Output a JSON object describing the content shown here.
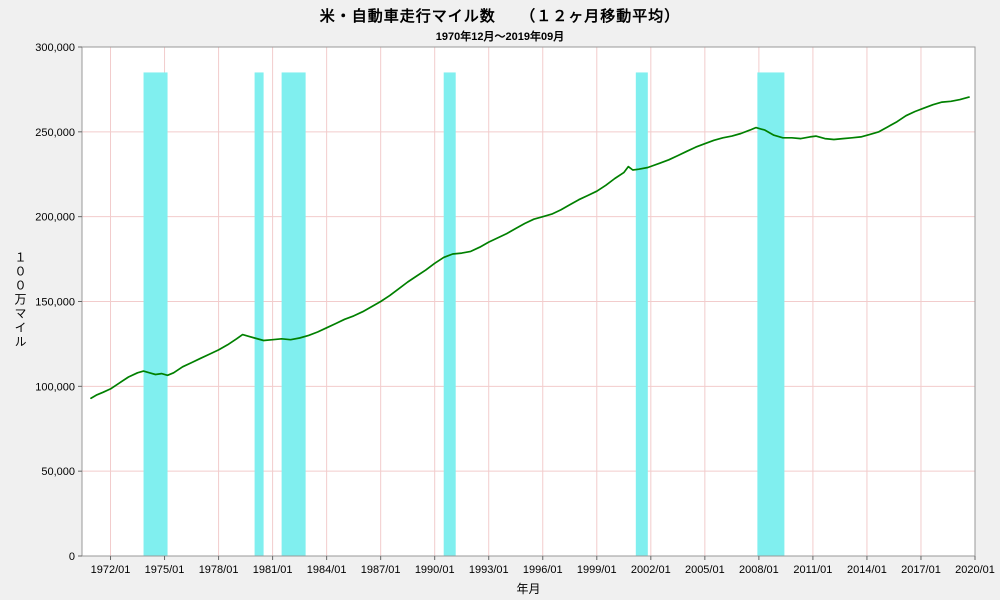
{
  "chart_data": {
    "type": "line",
    "title": "米・自動車走行マイル数　　（１２ヶ月移動平均）",
    "subtitle": "1970年12月～2019年09月",
    "xlabel": "年月",
    "ylabel": "１００万マイル",
    "ylim": [
      0,
      300000
    ],
    "yticks": [
      0,
      50000,
      100000,
      150000,
      200000,
      250000,
      300000
    ],
    "xticks": [
      "1972/01",
      "1975/01",
      "1978/01",
      "1981/01",
      "1984/01",
      "1987/01",
      "1990/01",
      "1993/01",
      "1996/01",
      "1999/01",
      "2002/01",
      "2005/01",
      "2008/01",
      "2011/01",
      "2014/01",
      "2017/01",
      "2020/01"
    ],
    "x_range": [
      "1970/06",
      "2020/01"
    ],
    "grid": true,
    "grid_color": "#f2cccc",
    "plot_bg": "#ffffff",
    "border_color": "#999999",
    "line_color": "#008000",
    "band_color": "#80efef",
    "band_top": 285000,
    "recession_bands": [
      [
        "1973/11",
        "1975/03"
      ],
      [
        "1980/01",
        "1980/07"
      ],
      [
        "1981/07",
        "1982/11"
      ],
      [
        "1990/07",
        "1991/03"
      ],
      [
        "2001/03",
        "2001/11"
      ],
      [
        "2007/12",
        "2009/06"
      ]
    ],
    "series": [
      {
        "name": "米・自動車走行マイル数（12ヶ月移動平均）",
        "points": [
          [
            "1970/12",
            93000
          ],
          [
            "1971/04",
            95000
          ],
          [
            "1971/08",
            96500
          ],
          [
            "1972/01",
            98500
          ],
          [
            "1972/07",
            102000
          ],
          [
            "1973/01",
            105500
          ],
          [
            "1973/07",
            108000
          ],
          [
            "1973/11",
            109000
          ],
          [
            "1974/03",
            108000
          ],
          [
            "1974/07",
            107000
          ],
          [
            "1974/11",
            107500
          ],
          [
            "1975/03",
            106500
          ],
          [
            "1975/07",
            108000
          ],
          [
            "1976/01",
            111500
          ],
          [
            "1976/07",
            114000
          ],
          [
            "1977/01",
            116500
          ],
          [
            "1977/07",
            119000
          ],
          [
            "1978/01",
            121500
          ],
          [
            "1978/07",
            124500
          ],
          [
            "1979/01",
            128000
          ],
          [
            "1979/05",
            130500
          ],
          [
            "1979/09",
            129500
          ],
          [
            "1980/01",
            128500
          ],
          [
            "1980/07",
            127000
          ],
          [
            "1981/01",
            127500
          ],
          [
            "1981/07",
            128000
          ],
          [
            "1982/01",
            127500
          ],
          [
            "1982/07",
            128500
          ],
          [
            "1983/01",
            130000
          ],
          [
            "1983/07",
            132000
          ],
          [
            "1984/01",
            134500
          ],
          [
            "1984/07",
            137000
          ],
          [
            "1985/01",
            139500
          ],
          [
            "1985/07",
            141500
          ],
          [
            "1986/01",
            144000
          ],
          [
            "1986/07",
            147000
          ],
          [
            "1987/01",
            150000
          ],
          [
            "1987/07",
            153500
          ],
          [
            "1988/01",
            157500
          ],
          [
            "1988/07",
            161500
          ],
          [
            "1989/01",
            165000
          ],
          [
            "1989/07",
            168500
          ],
          [
            "1990/01",
            172500
          ],
          [
            "1990/07",
            176000
          ],
          [
            "1991/01",
            178000
          ],
          [
            "1991/07",
            178500
          ],
          [
            "1992/01",
            179500
          ],
          [
            "1992/07",
            182000
          ],
          [
            "1993/01",
            185000
          ],
          [
            "1993/07",
            187500
          ],
          [
            "1994/01",
            190000
          ],
          [
            "1994/07",
            193000
          ],
          [
            "1995/01",
            196000
          ],
          [
            "1995/07",
            198500
          ],
          [
            "1996/01",
            200000
          ],
          [
            "1996/07",
            201500
          ],
          [
            "1997/01",
            204000
          ],
          [
            "1997/07",
            207000
          ],
          [
            "1998/01",
            210000
          ],
          [
            "1998/07",
            212500
          ],
          [
            "1999/01",
            215000
          ],
          [
            "1999/07",
            218500
          ],
          [
            "2000/01",
            222500
          ],
          [
            "2000/07",
            226000
          ],
          [
            "2000/10",
            229500
          ],
          [
            "2001/01",
            227500
          ],
          [
            "2001/05",
            228000
          ],
          [
            "2001/11",
            229000
          ],
          [
            "2002/07",
            231500
          ],
          [
            "2003/01",
            233500
          ],
          [
            "2003/07",
            236000
          ],
          [
            "2004/01",
            238500
          ],
          [
            "2004/07",
            241000
          ],
          [
            "2005/01",
            243000
          ],
          [
            "2005/07",
            245000
          ],
          [
            "2006/01",
            246500
          ],
          [
            "2006/07",
            247500
          ],
          [
            "2007/01",
            249000
          ],
          [
            "2007/07",
            251000
          ],
          [
            "2007/11",
            252500
          ],
          [
            "2008/05",
            251000
          ],
          [
            "2008/11",
            248000
          ],
          [
            "2009/05",
            246500
          ],
          [
            "2009/11",
            246500
          ],
          [
            "2010/05",
            246000
          ],
          [
            "2010/11",
            247000
          ],
          [
            "2011/03",
            247500
          ],
          [
            "2011/09",
            246000
          ],
          [
            "2012/03",
            245500
          ],
          [
            "2012/09",
            246000
          ],
          [
            "2013/03",
            246500
          ],
          [
            "2013/09",
            247000
          ],
          [
            "2014/03",
            248500
          ],
          [
            "2014/09",
            250000
          ],
          [
            "2015/03",
            253000
          ],
          [
            "2015/09",
            256000
          ],
          [
            "2016/03",
            259500
          ],
          [
            "2016/09",
            262000
          ],
          [
            "2017/03",
            264000
          ],
          [
            "2017/09",
            266000
          ],
          [
            "2018/03",
            267500
          ],
          [
            "2018/09",
            268000
          ],
          [
            "2019/03",
            269000
          ],
          [
            "2019/09",
            270500
          ]
        ]
      }
    ]
  }
}
